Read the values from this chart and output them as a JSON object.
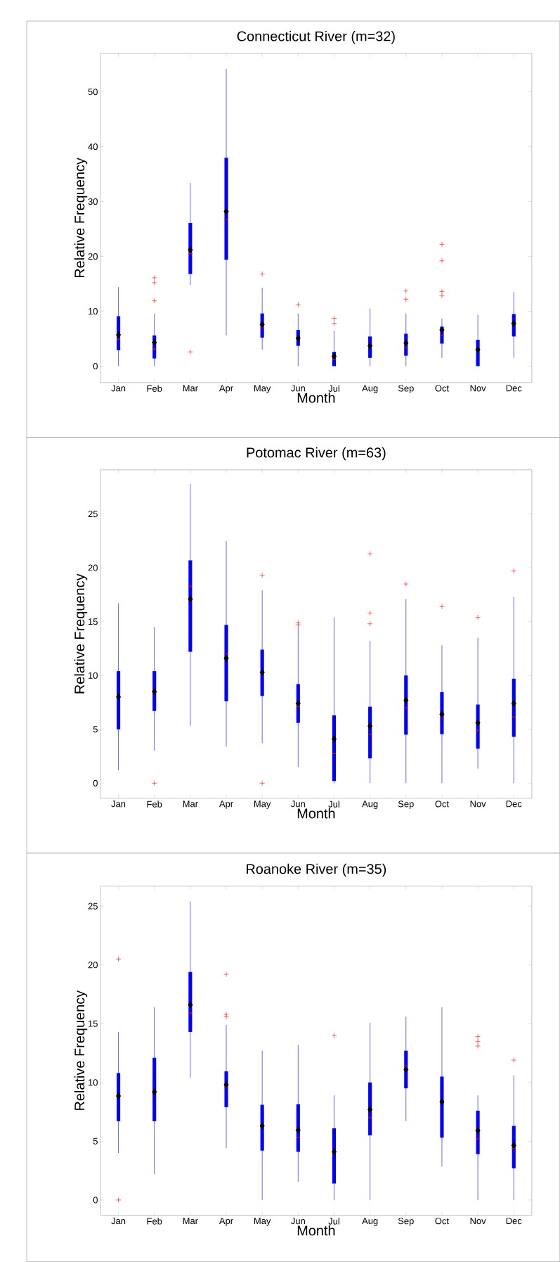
{
  "chart_data": [
    {
      "type": "box",
      "title": "Connecticut River (m=32)",
      "xlabel": "Month",
      "ylabel": "Relative Frequency",
      "color": "#0000ff",
      "categories": [
        "Jan",
        "Feb",
        "Mar",
        "Apr",
        "May",
        "Jun",
        "Jul",
        "Aug",
        "Sep",
        "Oct",
        "Nov",
        "Dec"
      ],
      "ylim": [
        -3,
        57
      ],
      "yticks": [
        0,
        10,
        20,
        30,
        40,
        50
      ],
      "boxes": [
        {
          "low": 0,
          "q1": 2.9,
          "median": 4.9,
          "q3": 9.1,
          "high": 14.4,
          "mean": 5.7
        },
        {
          "low": 0,
          "q1": 1.4,
          "median": 3.1,
          "q3": 5.6,
          "high": 9.6,
          "mean": 4.3,
          "outliers": [
            16.1,
            15.2,
            11.9
          ]
        },
        {
          "low": 14.8,
          "q1": 16.8,
          "median": 20.5,
          "q3": 26.1,
          "high": 33.4,
          "mean": 21.2,
          "outliers": [
            2.6
          ]
        },
        {
          "low": 5.6,
          "q1": 19.4,
          "median": 26.7,
          "q3": 38.0,
          "high": 54.2,
          "mean": 28.2
        },
        {
          "low": 3.0,
          "q1": 5.2,
          "median": 7.0,
          "q3": 9.6,
          "high": 14.3,
          "mean": 7.6,
          "outliers": [
            16.8
          ]
        },
        {
          "low": 0,
          "q1": 3.7,
          "median": 4.9,
          "q3": 6.6,
          "high": 9.6,
          "mean": 5.1,
          "outliers": [
            11.2
          ]
        },
        {
          "low": 0,
          "q1": 0,
          "median": 1.2,
          "q3": 2.6,
          "high": 6.5,
          "mean": 1.8,
          "outliers": [
            8.7,
            7.8
          ]
        },
        {
          "low": 0,
          "q1": 1.5,
          "median": 3.5,
          "q3": 5.4,
          "high": 10.5,
          "mean": 3.7
        },
        {
          "low": 0,
          "q1": 1.9,
          "median": 3.4,
          "q3": 5.9,
          "high": 9.6,
          "mean": 4.2,
          "outliers": [
            13.7,
            12.2
          ]
        },
        {
          "low": 1.5,
          "q1": 4.1,
          "median": 5.6,
          "q3": 7.2,
          "high": 8.7,
          "mean": 6.6,
          "outliers": [
            22.2,
            19.2,
            13.6,
            12.8
          ]
        },
        {
          "low": 0,
          "q1": 0,
          "median": 3.0,
          "q3": 4.8,
          "high": 9.4,
          "mean": 3.0
        },
        {
          "low": 1.5,
          "q1": 5.4,
          "median": 7.6,
          "q3": 9.5,
          "high": 13.5,
          "mean": 7.8
        }
      ]
    },
    {
      "type": "box",
      "title": "Potomac River (m=63)",
      "xlabel": "Month",
      "ylabel": "Relative Frequency",
      "color": "#0000ff",
      "categories": [
        "Jan",
        "Feb",
        "Mar",
        "Apr",
        "May",
        "Jun",
        "Jul",
        "Aug",
        "Sep",
        "Oct",
        "Nov",
        "Dec"
      ],
      "ylim": [
        -1.4,
        29.1
      ],
      "yticks": [
        0,
        5,
        10,
        15,
        20,
        25
      ],
      "boxes": [
        {
          "low": 1.2,
          "q1": 5.0,
          "median": 8.0,
          "q3": 10.4,
          "high": 16.7,
          "mean": 8.0
        },
        {
          "low": 3.0,
          "q1": 6.7,
          "median": 8.4,
          "q3": 10.4,
          "high": 14.5,
          "mean": 8.5,
          "outliers": [
            0
          ]
        },
        {
          "low": 5.3,
          "q1": 12.2,
          "median": 18.3,
          "q3": 20.7,
          "high": 27.8,
          "mean": 17.1
        },
        {
          "low": 3.4,
          "q1": 7.6,
          "median": 12.0,
          "q3": 14.7,
          "high": 22.5,
          "mean": 11.6
        },
        {
          "low": 3.7,
          "q1": 8.1,
          "median": 10.1,
          "q3": 12.4,
          "high": 17.9,
          "mean": 10.3,
          "outliers": [
            19.3,
            0
          ]
        },
        {
          "low": 1.5,
          "q1": 5.6,
          "median": 7.1,
          "q3": 9.2,
          "high": 14.5,
          "mean": 7.4,
          "outliers": [
            14.9,
            14.7
          ]
        },
        {
          "low": 0,
          "q1": 0.2,
          "median": 2.75,
          "q3": 6.3,
          "high": 15.4,
          "mean": 4.1
        },
        {
          "low": 0,
          "q1": 2.3,
          "median": 4.55,
          "q3": 7.1,
          "high": 13.2,
          "mean": 5.3,
          "outliers": [
            21.3,
            15.8,
            14.8
          ]
        },
        {
          "low": 0,
          "q1": 4.5,
          "median": 7.0,
          "q3": 10.0,
          "high": 17.1,
          "mean": 7.7,
          "outliers": [
            18.5
          ]
        },
        {
          "low": 0,
          "q1": 4.55,
          "median": 6.1,
          "q3": 8.45,
          "high": 12.8,
          "mean": 6.4,
          "outliers": [
            16.4
          ]
        },
        {
          "low": 1.35,
          "q1": 3.2,
          "median": 4.9,
          "q3": 7.3,
          "high": 13.5,
          "mean": 5.6,
          "outliers": [
            15.4
          ]
        },
        {
          "low": 0,
          "q1": 4.3,
          "median": 6.15,
          "q3": 9.7,
          "high": 17.3,
          "mean": 7.4,
          "outliers": [
            19.7
          ]
        }
      ]
    },
    {
      "type": "box",
      "title": "Roanoke River (m=35)",
      "xlabel": "Month",
      "ylabel": "Relative Frequency",
      "color": "#0000ff",
      "categories": [
        "Jan",
        "Feb",
        "Mar",
        "Apr",
        "May",
        "Jun",
        "Jul",
        "Aug",
        "Sep",
        "Oct",
        "Nov",
        "Dec"
      ],
      "ylim": [
        -1.3,
        26.7
      ],
      "yticks": [
        0,
        5,
        10,
        15,
        20,
        25
      ],
      "boxes": [
        {
          "low": 4.0,
          "q1": 6.7,
          "median": 8.9,
          "q3": 10.8,
          "high": 14.3,
          "mean": 8.85,
          "outliers": [
            20.5,
            0
          ]
        },
        {
          "low": 2.2,
          "q1": 6.7,
          "median": 9.3,
          "q3": 12.1,
          "high": 16.4,
          "mean": 9.2
        },
        {
          "low": 10.4,
          "q1": 14.3,
          "median": 15.9,
          "q3": 19.4,
          "high": 25.4,
          "mean": 16.6
        },
        {
          "low": 4.4,
          "q1": 7.9,
          "median": 9.6,
          "q3": 10.95,
          "high": 14.9,
          "mean": 9.8,
          "outliers": [
            19.2,
            15.8,
            15.6
          ]
        },
        {
          "low": 0,
          "q1": 4.2,
          "median": 6.2,
          "q3": 8.1,
          "high": 12.7,
          "mean": 6.3
        },
        {
          "low": 1.55,
          "q1": 4.1,
          "median": 5.3,
          "q3": 8.15,
          "high": 13.2,
          "mean": 5.95
        },
        {
          "low": 0,
          "q1": 1.4,
          "median": 4.0,
          "q3": 6.1,
          "high": 8.9,
          "mean": 4.1,
          "outliers": [
            14.0
          ]
        },
        {
          "low": 0,
          "q1": 5.5,
          "median": 7.0,
          "q3": 10.0,
          "high": 15.1,
          "mean": 7.7
        },
        {
          "low": 6.7,
          "q1": 9.5,
          "median": 11.4,
          "q3": 12.7,
          "high": 15.6,
          "mean": 11.1
        },
        {
          "low": 2.85,
          "q1": 5.3,
          "median": 8.3,
          "q3": 10.5,
          "high": 16.4,
          "mean": 8.35
        },
        {
          "low": 0,
          "q1": 3.9,
          "median": 5.2,
          "q3": 7.6,
          "high": 8.9,
          "mean": 5.9,
          "outliers": [
            13.9,
            13.5,
            13.1
          ]
        },
        {
          "low": 0,
          "q1": 2.7,
          "median": 4.4,
          "q3": 6.3,
          "high": 10.6,
          "mean": 4.65,
          "outliers": [
            11.9
          ]
        }
      ]
    }
  ]
}
